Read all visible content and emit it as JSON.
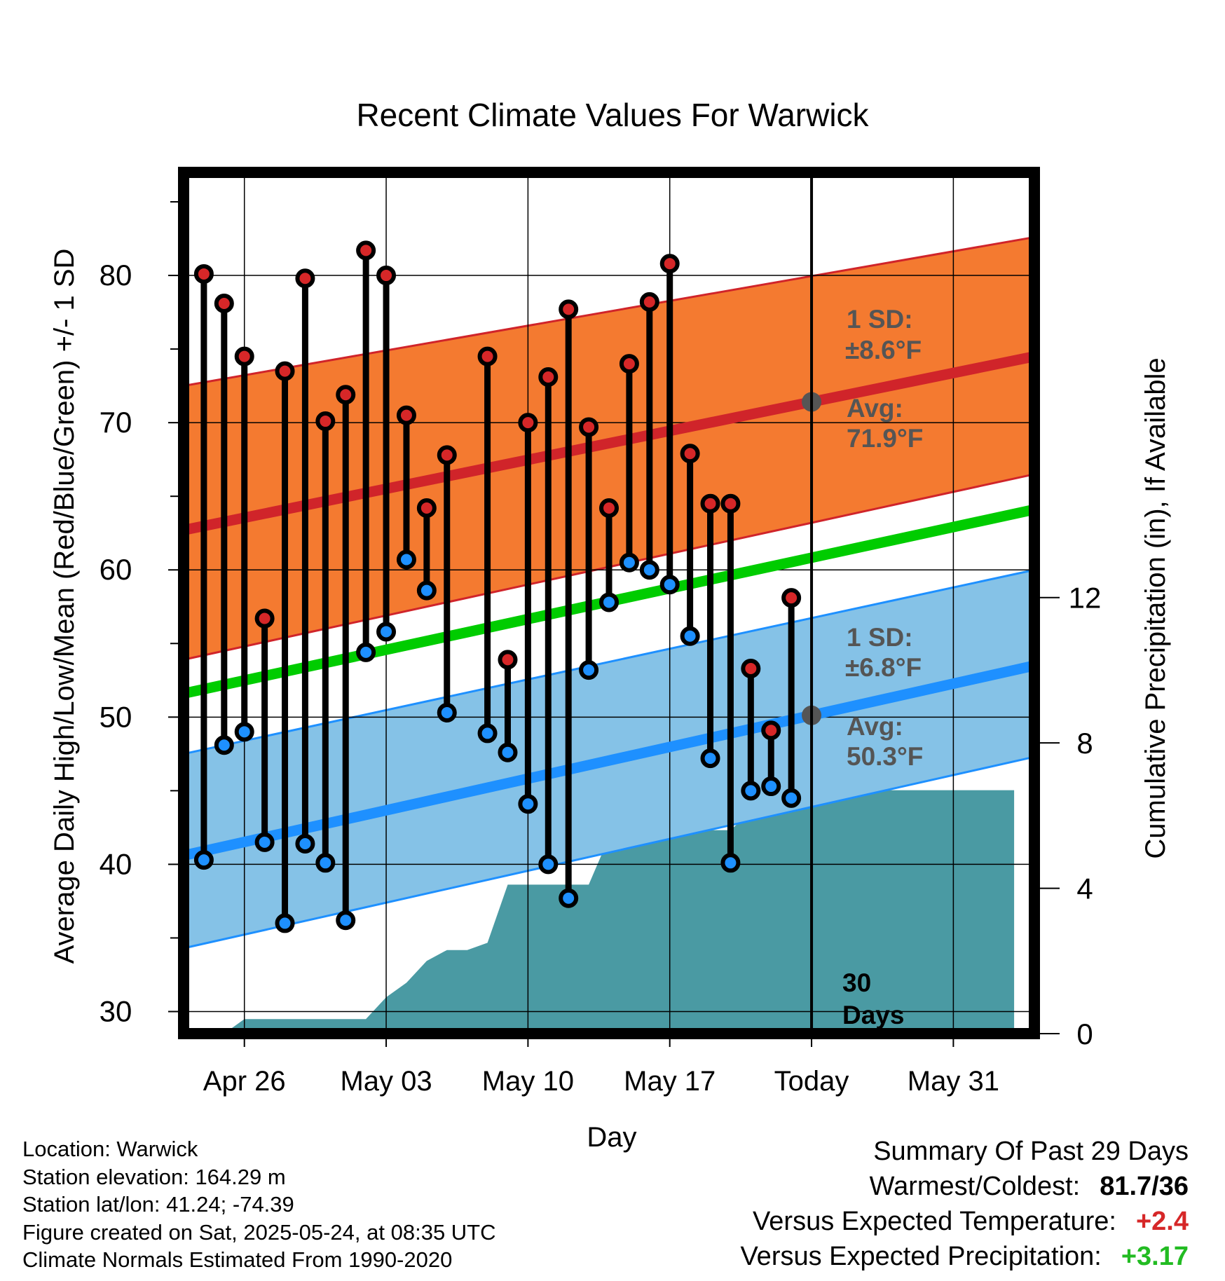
{
  "chart_data": {
    "type": "line",
    "title": "Recent Climate Values For Warwick",
    "xlabel": "Day",
    "ylabel": "Average Daily High/Low/Mean (Red/Blue/Green) +/- 1 SD",
    "y2label": "Cumulative Precipitation (in), If Available",
    "x_start": "2025-04-23",
    "x_end": "2025-06-04",
    "x_ticks": [
      "Apr 26",
      "May 03",
      "May 10",
      "May 17",
      "Today",
      "May 31"
    ],
    "ylim": [
      28.5,
      87
    ],
    "y_ticks": [
      30,
      40,
      50,
      60,
      70,
      80
    ],
    "y2lim": [
      0,
      23.7
    ],
    "y2_ticks": [
      0,
      4,
      8,
      12
    ],
    "grid": true,
    "days": [
      "Apr 24",
      "Apr 25",
      "Apr 26",
      "Apr 27",
      "Apr 28",
      "Apr 29",
      "Apr 30",
      "May 01",
      "May 02",
      "May 03",
      "May 04",
      "May 05",
      "May 06",
      "May 07",
      "May 08",
      "May 09",
      "May 10",
      "May 11",
      "May 12",
      "May 13",
      "May 14",
      "May 15",
      "May 16",
      "May 17",
      "May 18",
      "May 19",
      "May 20",
      "May 21",
      "May 22",
      "May 23"
    ],
    "series": [
      {
        "name": "High",
        "color": "#d62728",
        "values": [
          80.1,
          78.1,
          74.5,
          56.7,
          73.5,
          79.8,
          70.1,
          71.9,
          81.7,
          80.0,
          70.5,
          64.2,
          67.8,
          null,
          74.5,
          53.9,
          70.0,
          73.1,
          77.7,
          69.7,
          64.2,
          74.0,
          78.2,
          80.8,
          67.9,
          64.5,
          64.5,
          53.3,
          49.1,
          58.1
        ]
      },
      {
        "name": "Low",
        "color": "#1e90ff",
        "values": [
          40.3,
          48.1,
          49.0,
          41.5,
          36.0,
          41.4,
          40.1,
          36.2,
          54.4,
          55.8,
          60.7,
          58.6,
          50.3,
          null,
          48.9,
          47.6,
          44.1,
          40.0,
          37.7,
          53.2,
          57.8,
          60.5,
          60.0,
          59.0,
          55.5,
          47.2,
          40.1,
          45.0,
          45.3,
          44.5
        ]
      }
    ],
    "normals": {
      "high_mean": {
        "start": 62.7,
        "end": 74.5
      },
      "high_sd_band": {
        "start_lo": 53.9,
        "start_hi": 72.5,
        "end_lo": 66.5,
        "end_hi": 82.6
      },
      "low_mean": {
        "start": 40.6,
        "end": 53.5
      },
      "low_sd_band": {
        "start_lo": 34.3,
        "start_hi": 47.5,
        "end_lo": 47.3,
        "end_hi": 60.0
      },
      "mean": {
        "start": 51.6,
        "end": 64.1
      }
    },
    "precip_cumulative": {
      "x": [
        "Apr 23",
        "Apr 25",
        "Apr 26",
        "Apr 27",
        "Apr 28",
        "Apr 29",
        "Apr 30",
        "May 01",
        "May 02",
        "May 03",
        "May 04",
        "May 05",
        "May 06",
        "May 07",
        "May 08",
        "May 09",
        "May 10",
        "May 11",
        "May 12",
        "May 13",
        "May 14",
        "May 15",
        "May 16",
        "May 17",
        "May 18",
        "May 19",
        "May 20",
        "May 21",
        "May 22",
        "May 23",
        "Jun 03"
      ],
      "values": [
        0,
        0,
        0.4,
        0.4,
        0.4,
        0.4,
        0.4,
        0.4,
        0.4,
        1.0,
        1.4,
        2.0,
        2.3,
        2.3,
        2.5,
        4.1,
        4.1,
        4.1,
        4.1,
        4.1,
        5.4,
        5.4,
        5.5,
        5.6,
        5.6,
        5.6,
        5.6,
        6.1,
        6.7,
        6.7,
        6.7
      ]
    },
    "annotations": {
      "high_sd_label": "1 SD:",
      "high_sd_value": "±8.6°F",
      "high_avg_label": "Avg:",
      "high_avg_value": "71.9°F",
      "low_sd_label": "1 SD:",
      "low_sd_value": "±6.8°F",
      "low_avg_label": "Avg:",
      "low_avg_value": "50.3°F",
      "days_number": "30",
      "days_word": "Days"
    },
    "colors": {
      "high_band": "#f47a30",
      "high_line": "#d0242a",
      "low_band": "#85c2e7",
      "low_line": "#1e90ff",
      "mean_line": "#00cc00",
      "precip": "#4a9aa3",
      "high_dot": "#d62728",
      "low_dot": "#1e90ff",
      "today_marker": "#555555",
      "annotation_text": "#555555"
    }
  },
  "footer": {
    "location": "Location: Warwick",
    "elevation": "Station elevation: 164.29 m",
    "latlon": "Station lat/lon: 41.24; -74.39",
    "created": "Figure created on Sat, 2025-05-24, at 08:35 UTC",
    "normals": "Climate Normals Estimated From 1990-2020"
  },
  "summary": {
    "title": "Summary Of Past 29 Days",
    "warmest_label": "Warmest/Coldest:",
    "warmest_value": "81.7/36",
    "temp_label": "Versus Expected Temperature:",
    "temp_value": "+2.4",
    "temp_color": "#d62728",
    "precip_label": "Versus Expected Precipitation:",
    "precip_value": "+3.17",
    "precip_color": "#22bb22"
  }
}
